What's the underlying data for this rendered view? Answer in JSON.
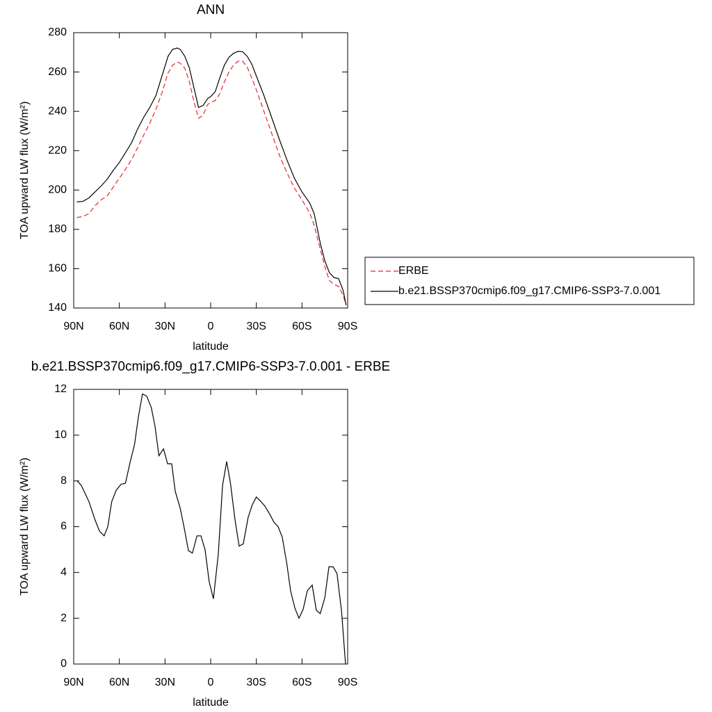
{
  "chart_data": [
    {
      "type": "line",
      "title": "ANN",
      "xlabel": "latitude",
      "ylabel": "TOA upward LW flux (W/m²)",
      "x": [
        88,
        84,
        80,
        76,
        72,
        68,
        64,
        60,
        56,
        52,
        48,
        44,
        40,
        36,
        32,
        28,
        25,
        22,
        20,
        17,
        14,
        11,
        8,
        5,
        2,
        0,
        -3,
        -6,
        -9,
        -12,
        -15,
        -18,
        -21,
        -24,
        -27,
        -30,
        -35,
        -40,
        -45,
        -50,
        -55,
        -60,
        -65,
        -68,
        -72,
        -75,
        -78,
        -81,
        -84,
        -87,
        -89
      ],
      "series": [
        {
          "name": "ERBE",
          "color": "#e8242a",
          "line_style": "dashed",
          "values": [
            186,
            186.5,
            188,
            192,
            195,
            197,
            201.5,
            206,
            210.5,
            215.5,
            221.5,
            228,
            234,
            241,
            249.5,
            259.5,
            263.5,
            265,
            264.5,
            262,
            255,
            245,
            236.5,
            238,
            243.5,
            244.5,
            245.5,
            249,
            255,
            260,
            263.5,
            265.5,
            265.5,
            262.5,
            257,
            251,
            240,
            229,
            218,
            209,
            201,
            195,
            188.5,
            182,
            170,
            161,
            154,
            152,
            151,
            146.5,
            141.5
          ]
        },
        {
          "name": "b.e21.BSSP370cmip6.f09_g17.CMIP6-SSP3-7.0.001",
          "color": "#000000",
          "line_style": "solid",
          "values": [
            194,
            194.2,
            196,
            199,
            202,
            205.5,
            210,
            214,
            219,
            224,
            231,
            237,
            242,
            248,
            258,
            268,
            271.5,
            272.2,
            271.5,
            268,
            262,
            252,
            242,
            243,
            246.5,
            247.5,
            250,
            257,
            263.5,
            267.5,
            269.5,
            270.5,
            270.3,
            268,
            264,
            258,
            248,
            237,
            226,
            215.5,
            206,
            199,
            193.5,
            188,
            173,
            164,
            158,
            155.5,
            155,
            149,
            141.5
          ]
        }
      ],
      "xlim": [
        90,
        -90
      ],
      "xticks": [
        {
          "value": 90,
          "label": "90N"
        },
        {
          "value": 60,
          "label": "60N"
        },
        {
          "value": 30,
          "label": "30N"
        },
        0,
        {
          "value": -30,
          "label": "30S"
        },
        {
          "value": -60,
          "label": "60S"
        },
        {
          "value": -90,
          "label": "90S"
        }
      ],
      "ylim": [
        140,
        280
      ],
      "yticks": [
        140,
        160,
        180,
        200,
        220,
        240,
        260,
        280
      ],
      "legend": "right"
    },
    {
      "type": "line",
      "title": "b.e21.BSSP370cmip6.f09_g17.CMIP6-SSP3-7.0.001 - ERBE",
      "xlabel": "latitude",
      "ylabel": "TOA upward LW flux (W/m²)",
      "x": [
        87.7,
        85,
        80,
        76,
        73,
        70,
        67.6,
        65,
        62,
        59,
        56,
        53,
        50,
        47.5,
        44.8,
        42,
        39,
        36.6,
        34,
        31,
        28.3,
        25.6,
        23.3,
        20,
        17.4,
        14.6,
        12,
        9,
        6.4,
        3.7,
        1,
        -1.8,
        -5,
        -7.8,
        -10.5,
        -13,
        -16,
        -18.7,
        -21.4,
        -24.6,
        -27.3,
        -30,
        -33,
        -35.6,
        -38.8,
        -41.5,
        -44.3,
        -47,
        -50,
        -52.5,
        -55.3,
        -58,
        -60.8,
        -63.5,
        -66.7,
        -69.4,
        -72,
        -75,
        -77.7,
        -80.4,
        -83,
        -86,
        -88.6
      ],
      "values": [
        8.0,
        7.8,
        7.1,
        6.3,
        5.8,
        5.6,
        6.0,
        7.1,
        7.6,
        7.85,
        7.9,
        8.8,
        9.6,
        10.8,
        11.8,
        11.7,
        11.2,
        10.4,
        9.1,
        9.4,
        8.75,
        8.75,
        7.55,
        6.8,
        5.95,
        4.95,
        4.85,
        5.6,
        5.6,
        5.0,
        3.6,
        2.85,
        4.8,
        7.8,
        8.85,
        7.9,
        6.3,
        5.15,
        5.25,
        6.4,
        6.95,
        7.3,
        7.1,
        6.9,
        6.55,
        6.2,
        6.0,
        5.55,
        4.4,
        3.2,
        2.45,
        2.0,
        2.4,
        3.2,
        3.45,
        2.35,
        2.2,
        2.9,
        4.25,
        4.25,
        3.95,
        2.3,
        0
      ],
      "color": "#000000",
      "xlim": [
        90,
        -90
      ],
      "xticks": [
        {
          "value": 90,
          "label": "90N"
        },
        {
          "value": 60,
          "label": "60N"
        },
        {
          "value": 30,
          "label": "30N"
        },
        0,
        {
          "value": -30,
          "label": "30S"
        },
        {
          "value": -60,
          "label": "60S"
        },
        {
          "value": -90,
          "label": "90S"
        }
      ],
      "ylim": [
        0,
        12
      ],
      "yticks": [
        0,
        2,
        4,
        6,
        8,
        10,
        12
      ]
    }
  ]
}
